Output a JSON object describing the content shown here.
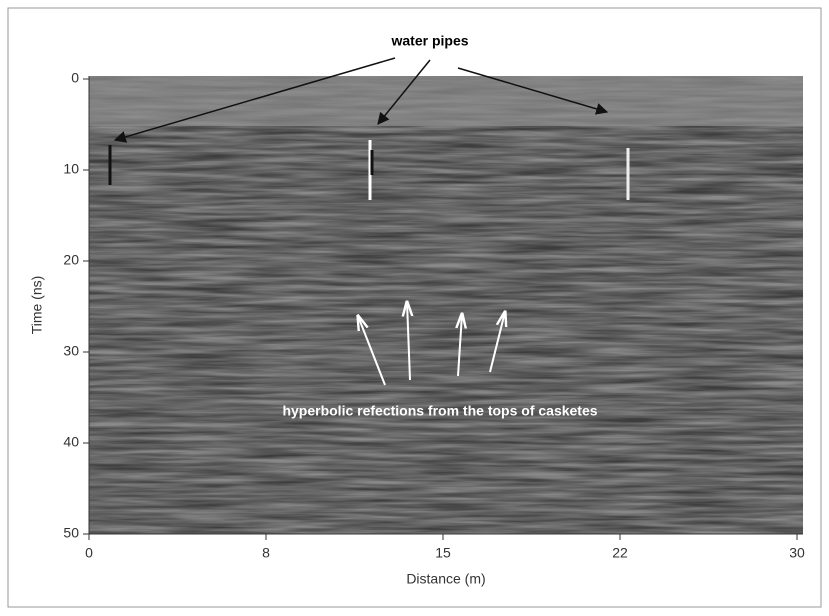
{
  "chart_data": {
    "type": "radargram",
    "xlabel": "Distance (m)",
    "ylabel": "Time (ns)",
    "xlim": [
      0,
      30
    ],
    "ylim": [
      50,
      0
    ],
    "xticks": [
      0,
      {
        "value": 7.5,
        "label": "8"
      },
      15,
      {
        "value": 22.5,
        "label": "22"
      },
      30
    ],
    "yticks": [
      0,
      10,
      20,
      30,
      40,
      50
    ],
    "annotations": [
      "water pipes",
      "hyperbolic refections from the tops of casketes"
    ]
  }
}
